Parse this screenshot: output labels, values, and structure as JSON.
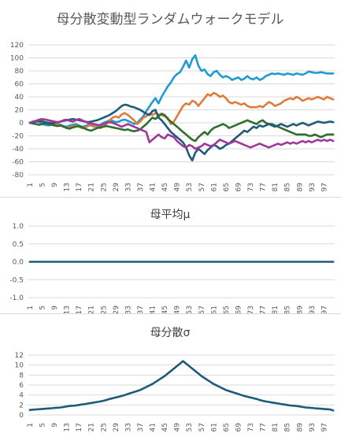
{
  "chart_data": [
    {
      "type": "line",
      "title": "母分散変動型ランダムウォークモデル",
      "ylim": [
        -80,
        120
      ],
      "yticks": [
        -80,
        -60,
        -40,
        -20,
        0,
        20,
        40,
        60,
        80,
        100,
        120
      ],
      "x": [
        1,
        2,
        3,
        4,
        5,
        6,
        7,
        8,
        9,
        10,
        11,
        12,
        13,
        14,
        15,
        16,
        17,
        18,
        19,
        20,
        21,
        22,
        23,
        24,
        25,
        26,
        27,
        28,
        29,
        30,
        31,
        32,
        33,
        34,
        35,
        36,
        37,
        38,
        39,
        40,
        41,
        42,
        43,
        44,
        45,
        46,
        47,
        48,
        49,
        50,
        51,
        52,
        53,
        54,
        55,
        56,
        57,
        58,
        59,
        60,
        61,
        62,
        63,
        64,
        65,
        66,
        67,
        68,
        69,
        70,
        71,
        72,
        73,
        74,
        75,
        76,
        77,
        78,
        79,
        80,
        81,
        82,
        83,
        84,
        85,
        86,
        87,
        88,
        89,
        90,
        91,
        92,
        93,
        94,
        95,
        96,
        97,
        98,
        99,
        100
      ],
      "xticklabels": [
        "1",
        "5",
        "9",
        "13",
        "17",
        "21",
        "25",
        "29",
        "33",
        "37",
        "41",
        "45",
        "49",
        "53",
        "57",
        "61",
        "65",
        "69",
        "73",
        "77",
        "81",
        "85",
        "89",
        "93",
        "97"
      ],
      "grid": true,
      "colors": [
        "#1f9bd1",
        "#e07b39",
        "#2e6f2e",
        "#1e5b7a",
        "#a0379a"
      ],
      "series": [
        {
          "values": [
            0,
            2,
            3,
            1,
            -2,
            -3,
            -4,
            -3,
            -2,
            -1,
            -3,
            -5,
            -6,
            -4,
            -3,
            -2,
            -4,
            -6,
            -5,
            -3,
            -4,
            -6,
            -5,
            -3,
            0,
            2,
            4,
            3,
            1,
            2,
            4,
            5,
            3,
            1,
            -2,
            0,
            5,
            10,
            18,
            25,
            32,
            38,
            30,
            40,
            48,
            56,
            62,
            70,
            75,
            78,
            86,
            96,
            85,
            98,
            104,
            88,
            80,
            82,
            75,
            72,
            78,
            80,
            74,
            70,
            72,
            70,
            66,
            68,
            70,
            66,
            68,
            72,
            68,
            67,
            70,
            66,
            68,
            72,
            74,
            76,
            75,
            76,
            75,
            74,
            76,
            75,
            74,
            76,
            75,
            74,
            76,
            79,
            78,
            77,
            77,
            78,
            77,
            76,
            76,
            76
          ]
        },
        {
          "values": [
            0,
            1,
            2,
            3,
            4,
            5,
            4,
            2,
            0,
            -2,
            -4,
            -6,
            -8,
            -7,
            -5,
            -4,
            -6,
            -8,
            -7,
            -5,
            -3,
            -5,
            -7,
            -8,
            -6,
            -2,
            4,
            8,
            10,
            8,
            13,
            15,
            12,
            8,
            4,
            -2,
            2,
            8,
            10,
            14,
            12,
            15,
            13,
            12,
            10,
            8,
            -2,
            2,
            10,
            18,
            26,
            30,
            28,
            34,
            32,
            26,
            32,
            38,
            44,
            42,
            46,
            44,
            40,
            42,
            38,
            32,
            30,
            32,
            30,
            28,
            30,
            26,
            24,
            24,
            24,
            26,
            24,
            28,
            32,
            30,
            26,
            28,
            30,
            34,
            36,
            38,
            36,
            40,
            38,
            34,
            36,
            38,
            36,
            38,
            40,
            38,
            36,
            40,
            38,
            36
          ]
        },
        {
          "values": [
            0,
            -1,
            -2,
            -3,
            -2,
            -1,
            -2,
            -3,
            -4,
            -5,
            -4,
            -6,
            -8,
            -9,
            -7,
            -6,
            -5,
            -7,
            -9,
            -11,
            -12,
            -10,
            -8,
            -7,
            -6,
            -5,
            -6,
            -7,
            -8,
            -9,
            -10,
            -11,
            -10,
            -12,
            -13,
            -12,
            -10,
            -6,
            -2,
            3,
            8,
            6,
            10,
            14,
            12,
            6,
            2,
            -2,
            -6,
            -10,
            -14,
            -18,
            -22,
            -26,
            -28,
            -22,
            -18,
            -14,
            -18,
            -12,
            -8,
            -6,
            -4,
            -2,
            -4,
            -8,
            -6,
            -4,
            -2,
            0,
            2,
            4,
            2,
            0,
            -2,
            2,
            4,
            0,
            -2,
            -2,
            -4,
            -6,
            -8,
            -10,
            -12,
            -14,
            -16,
            -18,
            -18,
            -18,
            -18,
            -20,
            -20,
            -18,
            -20,
            -22,
            -20,
            -18,
            -18,
            -18
          ]
        },
        {
          "values": [
            0,
            1,
            2,
            3,
            2,
            1,
            0,
            -1,
            0,
            1,
            2,
            3,
            4,
            5,
            6,
            5,
            4,
            3,
            2,
            1,
            2,
            3,
            4,
            6,
            8,
            10,
            12,
            15,
            18,
            22,
            26,
            28,
            27,
            25,
            24,
            22,
            20,
            17,
            14,
            12,
            18,
            20,
            8,
            4,
            -2,
            -8,
            -14,
            -18,
            -22,
            -26,
            -30,
            -38,
            -50,
            -58,
            -46,
            -40,
            -44,
            -48,
            -42,
            -38,
            -34,
            -36,
            -40,
            -38,
            -34,
            -32,
            -28,
            -24,
            -20,
            -16,
            -12,
            -14,
            -10,
            -6,
            -8,
            -4,
            -6,
            -4,
            -2,
            -4,
            -6,
            -4,
            -2,
            -4,
            -6,
            -4,
            -2,
            -4,
            -2,
            0,
            -2,
            -4,
            -2,
            0,
            2,
            1,
            0,
            1,
            2,
            1
          ]
        },
        {
          "values": [
            0,
            2,
            3,
            5,
            6,
            5,
            4,
            3,
            2,
            1,
            2,
            4,
            5,
            3,
            2,
            4,
            6,
            4,
            2,
            0,
            -1,
            -2,
            -3,
            -4,
            -2,
            0,
            1,
            0,
            -2,
            -4,
            -6,
            -4,
            -2,
            -4,
            -6,
            -8,
            -10,
            -12,
            -14,
            -30,
            -26,
            -22,
            -18,
            -22,
            -24,
            -18,
            -20,
            -22,
            -28,
            -32,
            -36,
            -38,
            -34,
            -36,
            -40,
            -38,
            -36,
            -32,
            -34,
            -36,
            -34,
            -30,
            -26,
            -28,
            -30,
            -32,
            -30,
            -28,
            -30,
            -32,
            -34,
            -36,
            -38,
            -36,
            -34,
            -32,
            -34,
            -36,
            -38,
            -36,
            -34,
            -32,
            -34,
            -32,
            -30,
            -32,
            -30,
            -32,
            -30,
            -28,
            -30,
            -28,
            -30,
            -28,
            -26,
            -28,
            -26,
            -28,
            -26,
            -28
          ]
        }
      ]
    },
    {
      "type": "line",
      "title": "母平均μ",
      "ylim": [
        -1.0,
        1.0
      ],
      "yticks": [
        "-1.0",
        "-0.5",
        "0.0",
        "0.5",
        "1.0"
      ],
      "x": [
        1,
        2,
        3,
        4,
        5,
        6,
        7,
        8,
        9,
        10,
        11,
        12,
        13,
        14,
        15,
        16,
        17,
        18,
        19,
        20,
        21,
        22,
        23,
        24,
        25,
        26,
        27,
        28,
        29,
        30,
        31,
        32,
        33,
        34,
        35,
        36,
        37,
        38,
        39,
        40,
        41,
        42,
        43,
        44,
        45,
        46,
        47,
        48,
        49,
        50,
        51,
        52,
        53,
        54,
        55,
        56,
        57,
        58,
        59,
        60,
        61,
        62,
        63,
        64,
        65,
        66,
        67,
        68,
        69,
        70,
        71,
        72,
        73,
        74,
        75,
        76,
        77,
        78,
        79,
        80,
        81,
        82,
        83,
        84,
        85,
        86,
        87,
        88,
        89,
        90,
        91,
        92,
        93,
        94,
        95,
        96,
        97,
        98,
        99,
        100
      ],
      "xticklabels": [
        "1",
        "5",
        "9",
        "13",
        "17",
        "21",
        "25",
        "29",
        "33",
        "37",
        "41",
        "45",
        "49",
        "53",
        "57",
        "61",
        "65",
        "69",
        "73",
        "77",
        "81",
        "85",
        "89",
        "93",
        "97"
      ],
      "grid": true,
      "colors": [
        "#1e5b7a"
      ],
      "series": [
        {
          "values": [
            0,
            0,
            0,
            0,
            0,
            0,
            0,
            0,
            0,
            0,
            0,
            0,
            0,
            0,
            0,
            0,
            0,
            0,
            0,
            0,
            0,
            0,
            0,
            0,
            0,
            0,
            0,
            0,
            0,
            0,
            0,
            0,
            0,
            0,
            0,
            0,
            0,
            0,
            0,
            0,
            0,
            0,
            0,
            0,
            0,
            0,
            0,
            0,
            0,
            0,
            0,
            0,
            0,
            0,
            0,
            0,
            0,
            0,
            0,
            0,
            0,
            0,
            0,
            0,
            0,
            0,
            0,
            0,
            0,
            0,
            0,
            0,
            0,
            0,
            0,
            0,
            0,
            0,
            0,
            0,
            0,
            0,
            0,
            0,
            0,
            0,
            0,
            0,
            0,
            0,
            0,
            0,
            0,
            0,
            0,
            0,
            0,
            0,
            0,
            0
          ]
        }
      ]
    },
    {
      "type": "line",
      "title": "母分散σ",
      "ylim": [
        0,
        12
      ],
      "yticks": [
        0,
        2,
        4,
        6,
        8,
        10,
        12
      ],
      "x": [
        1,
        2,
        3,
        4,
        5,
        6,
        7,
        8,
        9,
        10,
        11,
        12,
        13,
        14,
        15,
        16,
        17,
        18,
        19,
        20,
        21,
        22,
        23,
        24,
        25,
        26,
        27,
        28,
        29,
        30,
        31,
        32,
        33,
        34,
        35,
        36,
        37,
        38,
        39,
        40,
        41,
        42,
        43,
        44,
        45,
        46,
        47,
        48,
        49,
        50,
        51,
        52,
        53,
        54,
        55,
        56,
        57,
        58,
        59,
        60,
        61,
        62,
        63,
        64,
        65,
        66,
        67,
        68,
        69,
        70,
        71,
        72,
        73,
        74,
        75,
        76,
        77,
        78,
        79,
        80,
        81,
        82,
        83,
        84,
        85,
        86,
        87,
        88,
        89,
        90,
        91,
        92,
        93,
        94,
        95,
        96,
        97,
        98,
        99,
        100
      ],
      "xticklabels": [
        "1",
        "5",
        "9",
        "13",
        "17",
        "21",
        "25",
        "29",
        "33",
        "37",
        "41",
        "45",
        "49",
        "53",
        "57",
        "61",
        "65",
        "69",
        "73",
        "77",
        "81",
        "85",
        "89",
        "93",
        "97"
      ],
      "grid": true,
      "colors": [
        "#1e5b7a"
      ],
      "series": [
        {
          "values": [
            1.0,
            1.05,
            1.1,
            1.15,
            1.2,
            1.25,
            1.3,
            1.35,
            1.4,
            1.45,
            1.5,
            1.6,
            1.7,
            1.8,
            1.85,
            1.9,
            2.0,
            2.1,
            2.2,
            2.3,
            2.4,
            2.5,
            2.6,
            2.7,
            2.85,
            3.0,
            3.2,
            3.35,
            3.5,
            3.65,
            3.8,
            4.0,
            4.2,
            4.4,
            4.6,
            4.8,
            5.0,
            5.3,
            5.6,
            5.9,
            6.2,
            6.6,
            7.0,
            7.4,
            7.8,
            8.3,
            8.8,
            9.3,
            9.8,
            10.3,
            10.8,
            10.3,
            9.8,
            9.3,
            8.8,
            8.3,
            7.8,
            7.4,
            7.0,
            6.6,
            6.2,
            5.9,
            5.6,
            5.3,
            5.0,
            4.8,
            4.6,
            4.4,
            4.2,
            4.0,
            3.8,
            3.65,
            3.5,
            3.35,
            3.2,
            3.0,
            2.85,
            2.7,
            2.6,
            2.5,
            2.4,
            2.3,
            2.2,
            2.1,
            2.0,
            1.9,
            1.85,
            1.8,
            1.7,
            1.6,
            1.5,
            1.45,
            1.4,
            1.35,
            1.3,
            1.25,
            1.2,
            1.15,
            1.1,
            0.9
          ]
        }
      ]
    }
  ]
}
